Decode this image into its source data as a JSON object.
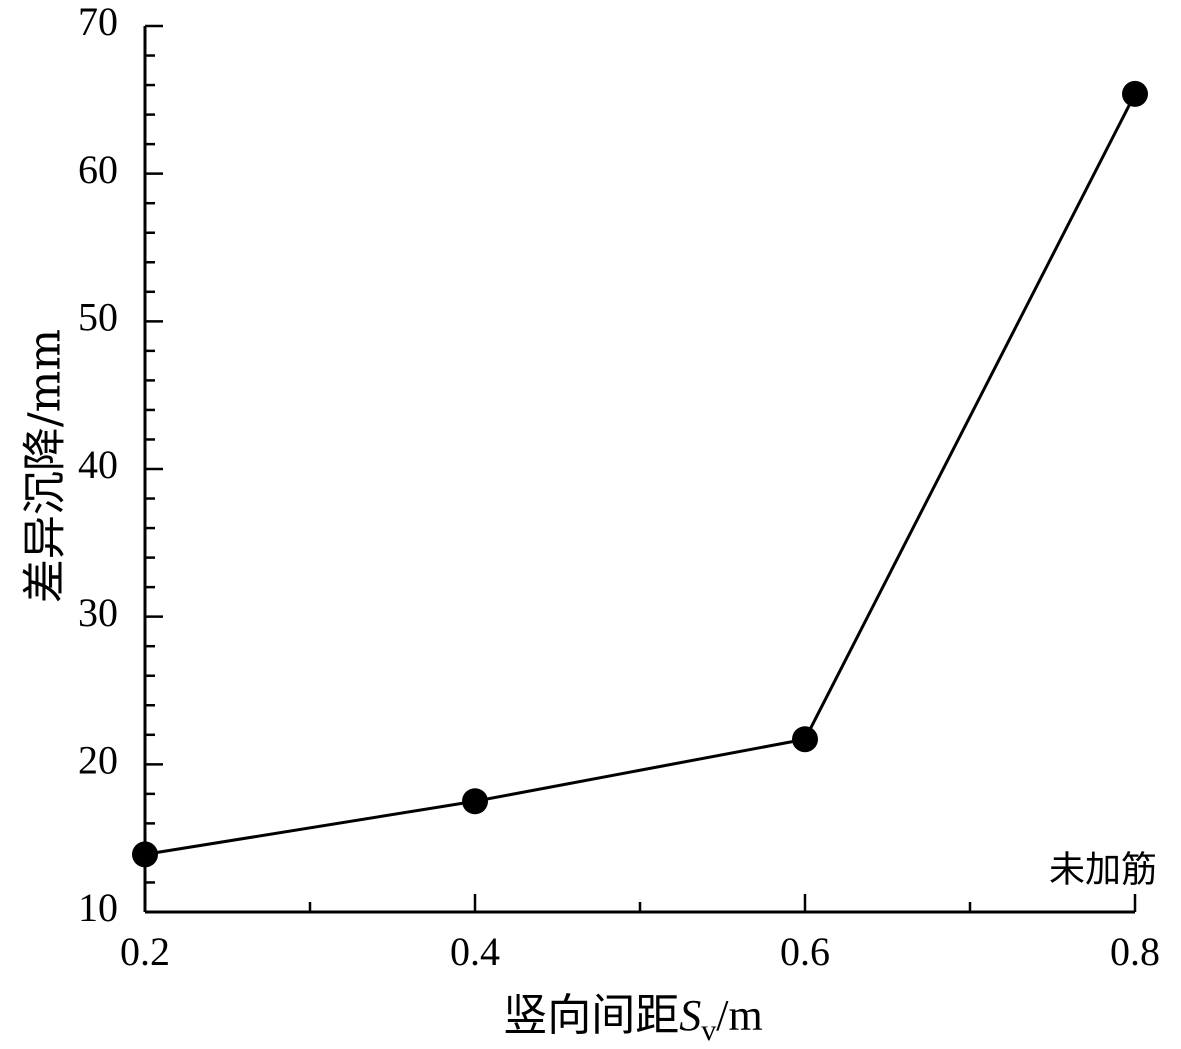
{
  "chart_data": {
    "type": "line",
    "x": [
      0.2,
      0.4,
      0.6,
      0.8
    ],
    "x_tick_labels": [
      "0.2",
      "0.4",
      "0.6",
      "0.8"
    ],
    "y_tick_labels": [
      "10",
      "20",
      "30",
      "40",
      "50",
      "60",
      "70"
    ],
    "series": [
      {
        "values": [
          13.9,
          17.5,
          21.7,
          65.4
        ]
      }
    ],
    "xlim": [
      0.2,
      0.8
    ],
    "ylim": [
      10,
      70
    ],
    "xlabel": {
      "main": "竖向间距",
      "symbol": "S",
      "subscript": "v",
      "unit": "/m"
    },
    "ylabel": "差异沉降/mm",
    "annotations": [
      {
        "text": "未加筋",
        "x": 0.8,
        "y": 13
      }
    ],
    "grid": false,
    "marker": "filled-circle",
    "color": "#000000"
  }
}
